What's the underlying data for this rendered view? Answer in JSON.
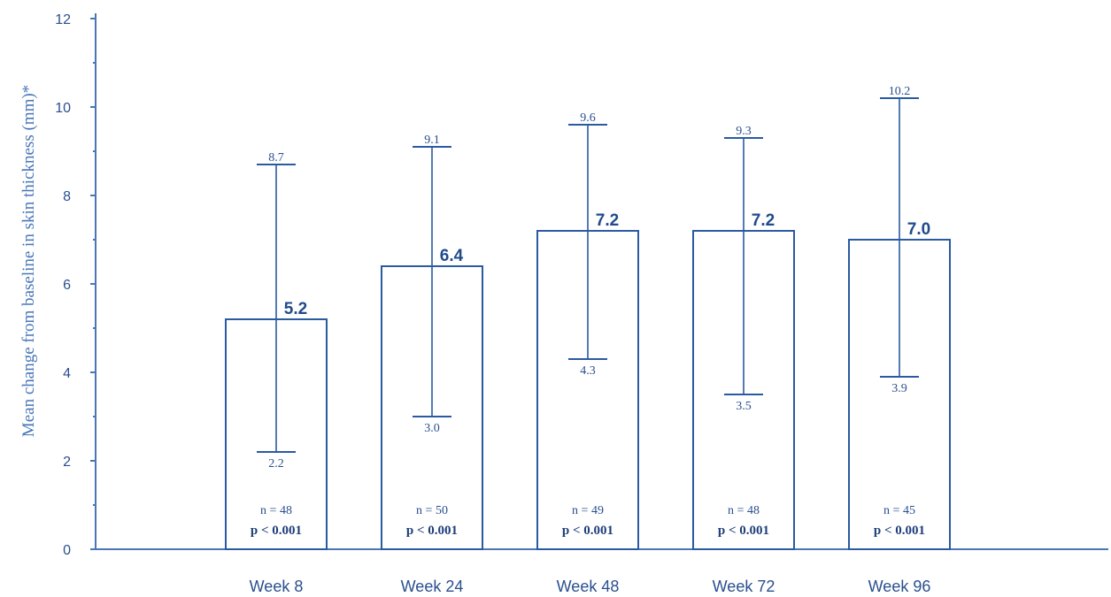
{
  "chart_data": {
    "type": "bar",
    "ylabel": "Mean change from baseline in skin thickness (mm)*",
    "ylim": [
      0,
      12
    ],
    "yticks": [
      "0",
      "2",
      "4",
      "6",
      "8",
      "10",
      "12"
    ],
    "categories": [
      "Week 8",
      "Week 24",
      "Week 48",
      "Week 72",
      "Week 96"
    ],
    "values": [
      5.2,
      6.4,
      7.2,
      7.2,
      7.0
    ],
    "value_labels": [
      "5.2",
      "6.4",
      "7.2",
      "7.2",
      "7.0"
    ],
    "ci_upper": [
      8.7,
      9.1,
      9.6,
      9.3,
      10.2
    ],
    "ci_upper_labels": [
      "8.7",
      "9.1",
      "9.6",
      "9.3",
      "10.2"
    ],
    "ci_lower": [
      2.2,
      3.0,
      4.3,
      3.5,
      3.9
    ],
    "ci_lower_labels": [
      "2.2",
      "3.0",
      "4.3",
      "3.5",
      "3.9"
    ],
    "n_labels": [
      "n = 48",
      "n = 50",
      "n = 49",
      "n = 48",
      "n = 45"
    ],
    "p_labels": [
      "p < 0.001",
      "p < 0.001",
      "p < 0.001",
      "p < 0.001",
      "p < 0.001"
    ],
    "grid": false,
    "colors": {
      "axis": "#4a76b8",
      "bar_edge": "#2a5aa0",
      "text": "#2a4f8f"
    }
  }
}
